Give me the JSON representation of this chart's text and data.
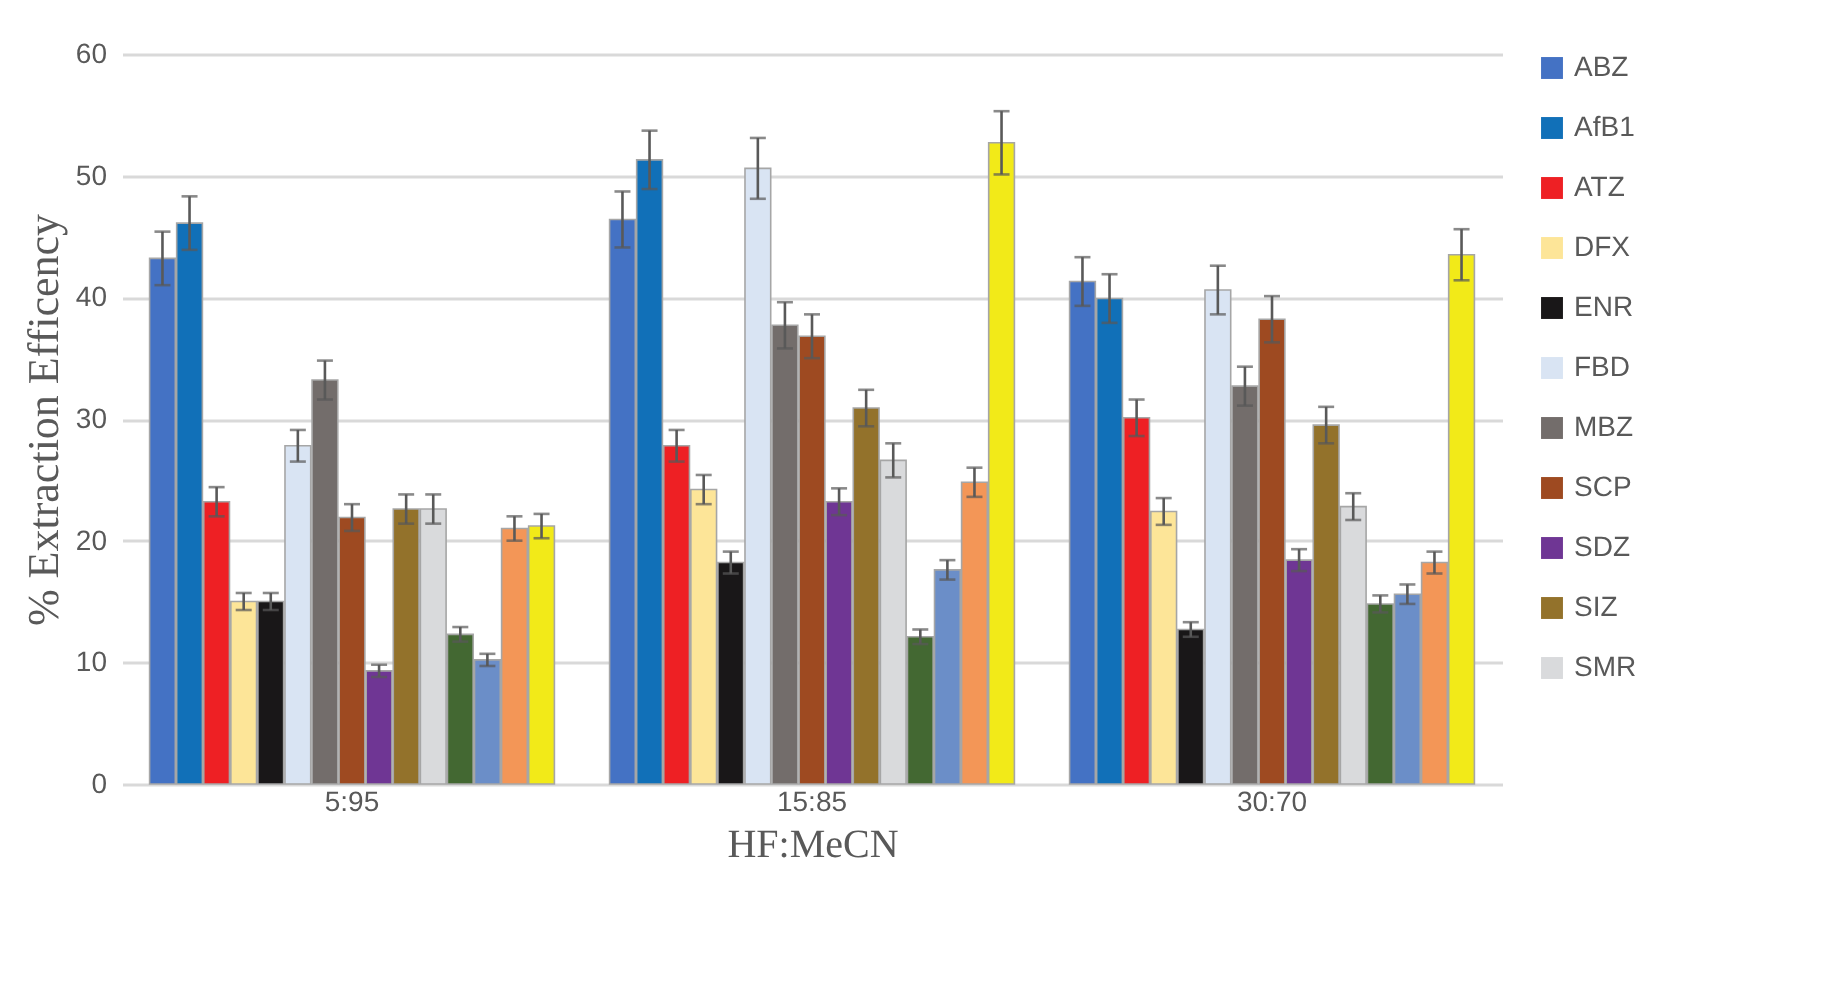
{
  "chart_data": {
    "type": "bar",
    "xlabel": "HF:MeCN",
    "ylabel": "% Extraction Efficency",
    "categories": [
      "5:95",
      "15:85",
      "30:70"
    ],
    "ylim": [
      0,
      60
    ],
    "yticks": [
      0,
      10,
      20,
      30,
      40,
      50,
      60
    ],
    "grid": "y",
    "legend": "right",
    "series": [
      {
        "name": "ABZ",
        "color": "#4472c4",
        "values": [
          43.2,
          46.4,
          41.3
        ],
        "errors": [
          2.2,
          2.3,
          2.0
        ]
      },
      {
        "name": "AfB1",
        "color": "#1170b8",
        "values": [
          46.1,
          51.3,
          39.9
        ],
        "errors": [
          2.2,
          2.4,
          2.0
        ]
      },
      {
        "name": "ATZ",
        "color": "#ee2024",
        "values": [
          23.2,
          27.8,
          30.1
        ],
        "errors": [
          1.2,
          1.3,
          1.5
        ]
      },
      {
        "name": "DFX",
        "color": "#fde598",
        "values": [
          15,
          24.2,
          22.4
        ],
        "errors": [
          0.7,
          1.2,
          1.1
        ]
      },
      {
        "name": "ENR",
        "color": "#191718",
        "values": [
          15,
          18.2,
          12.7
        ],
        "errors": [
          0.7,
          0.9,
          0.6
        ]
      },
      {
        "name": "FBD",
        "color": "#d9e4f3",
        "values": [
          27.8,
          50.6,
          40.6
        ],
        "errors": [
          1.3,
          2.5,
          2.0
        ]
      },
      {
        "name": "MBZ",
        "color": "#736d6b",
        "values": [
          33.2,
          37.7,
          32.7
        ],
        "errors": [
          1.6,
          1.9,
          1.6
        ]
      },
      {
        "name": "SCP",
        "color": "#9e4a21",
        "values": [
          21.9,
          36.8,
          38.2
        ],
        "errors": [
          1.1,
          1.8,
          1.9
        ]
      },
      {
        "name": "SDZ",
        "color": "#6f3694",
        "values": [
          9.3,
          23.2,
          18.4
        ],
        "errors": [
          0.5,
          1.1,
          0.9
        ]
      },
      {
        "name": "SIZ",
        "color": "#93722b",
        "values": [
          22.6,
          30.9,
          29.5
        ],
        "errors": [
          1.2,
          1.5,
          1.5
        ]
      },
      {
        "name": "SMR",
        "color": "#d9dadc",
        "values": [
          22.6,
          26.6,
          22.8
        ],
        "errors": [
          1.2,
          1.4,
          1.1
        ]
      },
      {
        "color": "#436832",
        "values": [
          12.3,
          12.1,
          14.8
        ],
        "errors": [
          0.6,
          0.6,
          0.7
        ]
      },
      {
        "color": "#6b8ec8",
        "values": [
          10.2,
          17.6,
          15.6
        ],
        "errors": [
          0.5,
          0.8,
          0.8
        ]
      },
      {
        "color": "#f39657",
        "values": [
          21,
          24.8,
          18.2
        ],
        "errors": [
          1.0,
          1.2,
          0.9
        ]
      },
      {
        "color": "#f2ea18",
        "values": [
          21.2,
          52.7,
          43.5
        ],
        "errors": [
          1.0,
          2.6,
          2.1
        ]
      }
    ]
  }
}
